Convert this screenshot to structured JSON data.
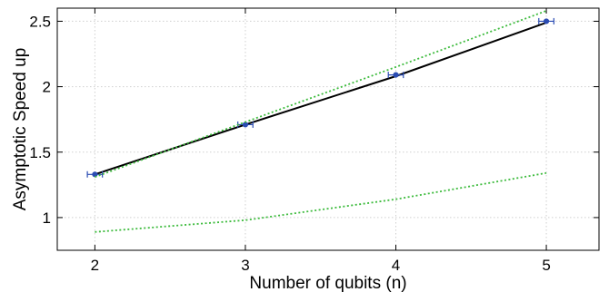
{
  "chart_data": {
    "type": "line",
    "title": "",
    "xlabel": "Number of qubits (n)",
    "ylabel": "Asymptotic Speed up",
    "xlim": [
      1.75,
      5.35
    ],
    "ylim": [
      0.75,
      2.6
    ],
    "x_ticks": [
      2,
      3,
      4,
      5
    ],
    "x_tick_labels": [
      "2",
      "3",
      "4",
      "5"
    ],
    "y_ticks": [
      1,
      1.5,
      2,
      2.5
    ],
    "y_tick_labels": [
      "1",
      "1.5",
      "2",
      "2.5"
    ],
    "grid": true,
    "series": [
      {
        "style": "line-with-errorbars",
        "color": "#000000",
        "marker_color": "#2b4cb3",
        "x": [
          2,
          3,
          4,
          5
        ],
        "y": [
          1.33,
          1.71,
          2.08,
          2.49
        ],
        "y_points": [
          1.33,
          1.71,
          2.09,
          2.5
        ],
        "x_error": [
          0.05,
          0.05,
          0.05,
          0.05
        ]
      },
      {
        "style": "dotted",
        "color": "#3dbb3d",
        "x": [
          2,
          3,
          4,
          5
        ],
        "y": [
          1.31,
          1.73,
          2.15,
          2.58
        ]
      },
      {
        "style": "dotted",
        "color": "#3dbb3d",
        "x": [
          2,
          3,
          4,
          5
        ],
        "y": [
          0.89,
          0.98,
          1.14,
          1.34
        ]
      }
    ]
  }
}
